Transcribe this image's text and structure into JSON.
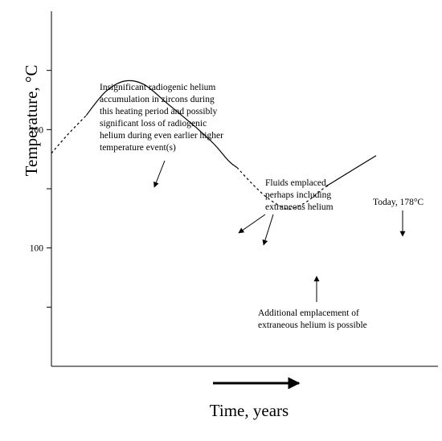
{
  "chart_data": {
    "type": "line",
    "xlabel": "Time, years",
    "ylabel": "Temperature, °C",
    "ylim": [
      0,
      300
    ],
    "y_ticks": [
      {
        "value": 50,
        "label": ""
      },
      {
        "value": 100,
        "label": "100"
      },
      {
        "value": 150,
        "label": ""
      },
      {
        "value": 200,
        "label": "200"
      },
      {
        "value": 250,
        "label": ""
      }
    ],
    "grid": false,
    "legend": "none",
    "x_axis_arrow": "right",
    "series": [
      {
        "style": "dashed",
        "points": [
          [
            0,
            180
          ],
          [
            4,
            195
          ],
          [
            9,
            212
          ]
        ]
      },
      {
        "style": "solid",
        "points": [
          [
            9,
            212
          ],
          [
            14,
            232
          ],
          [
            19,
            241
          ],
          [
            24,
            238
          ],
          [
            30,
            222
          ],
          [
            37,
            203
          ],
          [
            42,
            188
          ],
          [
            46,
            173
          ],
          [
            48,
            168
          ]
        ]
      },
      {
        "style": "dashed",
        "points": [
          [
            48,
            168
          ],
          [
            52,
            154
          ],
          [
            56,
            142
          ],
          [
            60,
            134
          ],
          [
            62,
            133
          ],
          [
            66,
            139
          ],
          [
            71,
            152
          ]
        ]
      },
      {
        "style": "solid",
        "points": [
          [
            71,
            152
          ],
          [
            78,
            166
          ],
          [
            84,
            178
          ]
        ]
      }
    ],
    "annotations": [
      {
        "lines": [
          "Insignificant radiogenic helium",
          "accumulation in zircons during",
          "this heating period and possibly",
          "significant loss of radiogenic",
          "helium during even earlier higher",
          "temperature event(s)"
        ]
      },
      {
        "lines": [
          "Fluids emplaced,",
          "perhaps including",
          "extraneous helium"
        ]
      },
      {
        "lines": [
          "Today, 178°C"
        ]
      },
      {
        "lines": [
          "Additional emplacement of",
          "extraneous helium is possible"
        ]
      }
    ]
  }
}
